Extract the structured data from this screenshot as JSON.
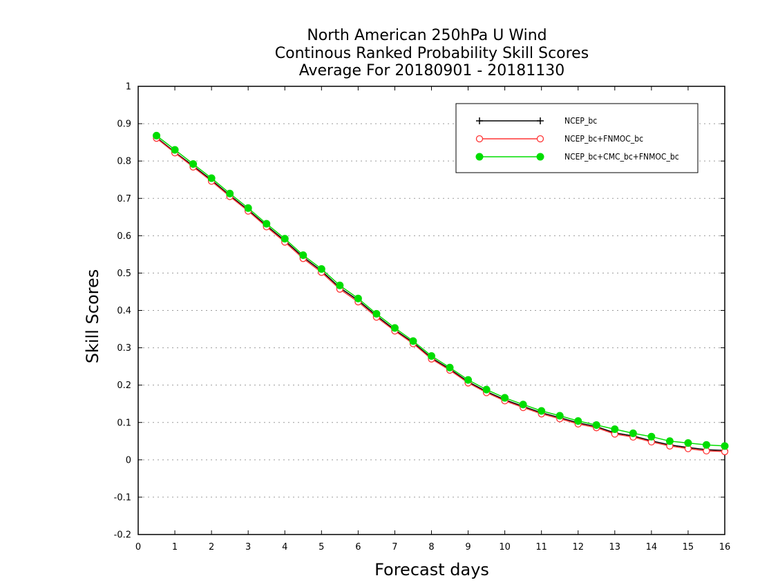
{
  "chart_data": {
    "type": "line",
    "title": [
      "North American 250hPa U Wind",
      "Continous Ranked Probability Skill Scores",
      "Average For 20180901 - 20181130"
    ],
    "xlabel": "Forecast days",
    "ylabel": "Skill Scores",
    "xlim": [
      0,
      16
    ],
    "ylim": [
      -0.2,
      1
    ],
    "xticks": [
      "0",
      "1",
      "2",
      "3",
      "4",
      "5",
      "6",
      "7",
      "8",
      "9",
      "10",
      "11",
      "12",
      "13",
      "14",
      "15",
      "16"
    ],
    "yticks": [
      "-0.2",
      "-0.1",
      "0",
      "0.1",
      "0.2",
      "0.3",
      "0.4",
      "0.5",
      "0.6",
      "0.7",
      "0.8",
      "0.9",
      "1"
    ],
    "grid": "horizontal dotted",
    "legend_position": "top-right",
    "x": [
      0.5,
      1,
      1.5,
      2,
      2.5,
      3,
      3.5,
      4,
      4.5,
      5,
      5.5,
      6,
      6.5,
      7,
      7.5,
      8,
      8.5,
      9,
      9.5,
      10,
      10.5,
      11,
      11.5,
      12,
      12.5,
      13,
      13.5,
      14,
      14.5,
      15,
      15.5,
      16
    ],
    "series": [
      {
        "name": "NCEP_bc",
        "color": "#000000",
        "marker": "plus",
        "values": [
          0.863,
          0.824,
          0.787,
          0.749,
          0.708,
          0.669,
          0.627,
          0.587,
          0.543,
          0.506,
          0.461,
          0.427,
          0.386,
          0.348,
          0.314,
          0.273,
          0.243,
          0.209,
          0.183,
          0.161,
          0.143,
          0.126,
          0.113,
          0.099,
          0.089,
          0.072,
          0.064,
          0.051,
          0.04,
          0.033,
          0.027,
          0.025
        ]
      },
      {
        "name": "NCEP_bc+FNMOC_bc",
        "color": "#ff3333",
        "marker": "open-circle",
        "values": [
          0.861,
          0.822,
          0.784,
          0.746,
          0.705,
          0.666,
          0.624,
          0.583,
          0.539,
          0.502,
          0.457,
          0.423,
          0.382,
          0.345,
          0.311,
          0.27,
          0.24,
          0.206,
          0.18,
          0.158,
          0.14,
          0.123,
          0.11,
          0.096,
          0.086,
          0.069,
          0.061,
          0.048,
          0.037,
          0.03,
          0.024,
          0.022
        ]
      },
      {
        "name": "NCEP_bc+CMC_bc+FNMOC_bc",
        "color": "#00dd00",
        "marker": "filled-circle",
        "values": [
          0.868,
          0.83,
          0.792,
          0.754,
          0.713,
          0.674,
          0.632,
          0.592,
          0.548,
          0.511,
          0.467,
          0.432,
          0.391,
          0.353,
          0.318,
          0.278,
          0.247,
          0.214,
          0.188,
          0.166,
          0.148,
          0.131,
          0.118,
          0.104,
          0.093,
          0.082,
          0.071,
          0.062,
          0.05,
          0.045,
          0.04,
          0.037
        ]
      }
    ]
  }
}
